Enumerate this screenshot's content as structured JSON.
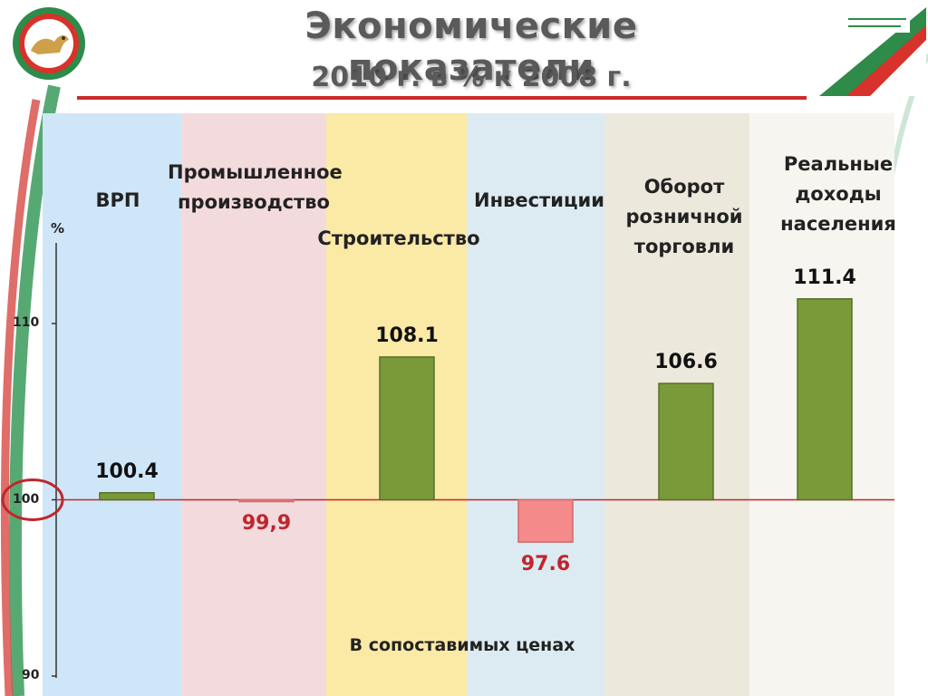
{
  "slide": {
    "title": "Экономические показатели",
    "subtitle": "2010 г. в % к 2008 г.",
    "note": "В сопоставимых ценах",
    "colors": {
      "title": "#5a5a5a",
      "rule": "#cc2a2a",
      "bar_positive": "#7a9a3a",
      "bar_negative": "#f58a8a",
      "value_positive": "#111111",
      "value_negative": "#c0262d",
      "baseline": "#c0262d"
    },
    "bands": [
      "#cfe6f8",
      "#f3dadd",
      "#fbe9a6",
      "#dcebf1",
      "#ece8dc",
      "#f7f5f0"
    ]
  },
  "chart_data": {
    "type": "bar",
    "ylabel": "%",
    "baseline": 100,
    "ylim": [
      90,
      113
    ],
    "yticks": [
      90,
      100,
      110
    ],
    "categories": [
      "ВРП",
      "Промышленное производство",
      "Строительство",
      "Инвестиции",
      "Оборот розничной торговли",
      "Реальные доходы населения"
    ],
    "values": [
      100.4,
      99.9,
      108.1,
      97.6,
      106.6,
      111.4
    ],
    "value_labels": [
      "100.4",
      "99,9",
      "108.1",
      "97.6",
      "106.6",
      "111.4"
    ],
    "grid": false,
    "legend": "none"
  }
}
